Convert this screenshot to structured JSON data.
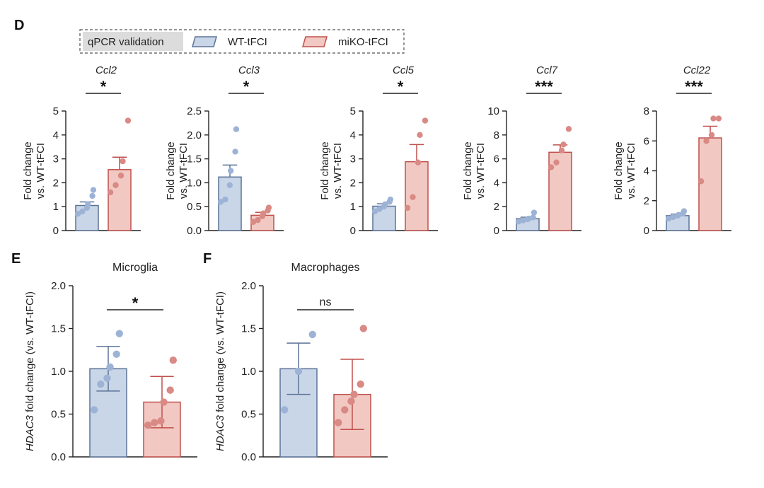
{
  "panels": {
    "D": "D",
    "E": "E",
    "F": "F"
  },
  "legend": {
    "title": "qPCR validation",
    "wt_label": "WT-tFCI",
    "ko_label": "miKO-tFCI"
  },
  "colors": {
    "wt_fill": "#c9d6e8",
    "wt_edge": "#5c7397",
    "wt_dot": "#9db3d6",
    "ko_fill": "#f2c8c3",
    "ko_edge": "#c0504d",
    "ko_dot": "#d98a84"
  },
  "chart_data": [
    {
      "type": "bar",
      "panel": "D",
      "title": "Ccl2",
      "ylabel_line1": "Fold change",
      "ylabel_line2": "vs. WT-tFCI",
      "ylim": [
        0,
        5
      ],
      "yticks": [
        "0",
        "1",
        "2",
        "3",
        "4",
        "5"
      ],
      "significance": "*",
      "categories": [
        "WT-tFCI",
        "miKO-tFCI"
      ],
      "values": [
        1.05,
        2.55
      ],
      "errors": [
        0.15,
        0.52
      ],
      "points": [
        [
          0.7,
          0.8,
          0.95,
          1.1,
          1.45,
          1.7
        ],
        [
          1.6,
          1.9,
          2.3,
          2.9,
          4.6
        ]
      ]
    },
    {
      "type": "bar",
      "panel": "D",
      "title": "Ccl3",
      "ylabel_line1": "Fold change",
      "ylabel_line2": "vs. WT-tFCI",
      "ylim": [
        0,
        2.5
      ],
      "yticks": [
        "0.0",
        "0.5",
        "1.0",
        "1.5",
        "2.0",
        "2.5"
      ],
      "significance": "*",
      "categories": [
        "WT-tFCI",
        "miKO-tFCI"
      ],
      "values": [
        1.12,
        0.32
      ],
      "errors": [
        0.25,
        0.06
      ],
      "points": [
        [
          0.6,
          0.65,
          0.95,
          1.25,
          1.65,
          2.12
        ],
        [
          0.18,
          0.22,
          0.3,
          0.36,
          0.42,
          0.48
        ]
      ]
    },
    {
      "type": "bar",
      "panel": "D",
      "title": "Ccl5",
      "ylabel_line1": "Fold change",
      "ylabel_line2": "vs. WT-tFCI",
      "ylim": [
        0,
        5
      ],
      "yticks": [
        "0",
        "1",
        "2",
        "3",
        "4",
        "5"
      ],
      "significance": "*",
      "categories": [
        "WT-tFCI",
        "miKO-tFCI"
      ],
      "values": [
        1.02,
        2.88
      ],
      "errors": [
        0.1,
        0.72
      ],
      "points": [
        [
          0.8,
          0.9,
          1.0,
          1.1,
          1.2,
          1.3
        ],
        [
          0.95,
          1.4,
          2.85,
          4.0,
          4.6
        ]
      ]
    },
    {
      "type": "bar",
      "panel": "D",
      "title": "Ccl7",
      "ylabel_line1": "Fold change",
      "ylabel_line2": "vs. WT-tFCI",
      "ylim": [
        0,
        10
      ],
      "yticks": [
        "0",
        "2",
        "4",
        "6",
        "8",
        "10"
      ],
      "significance": "***",
      "categories": [
        "WT-tFCI",
        "miKO-tFCI"
      ],
      "values": [
        1.0,
        6.55
      ],
      "errors": [
        0.12,
        0.62
      ],
      "points": [
        [
          0.75,
          0.85,
          0.95,
          1.0,
          1.1,
          1.5
        ],
        [
          5.3,
          5.7,
          6.7,
          7.2,
          8.5
        ]
      ]
    },
    {
      "type": "bar",
      "panel": "D",
      "title": "Ccl22",
      "ylabel_line1": "Fold change",
      "ylabel_line2": "vs. WT-tFCI",
      "ylim": [
        0,
        8
      ],
      "yticks": [
        "0",
        "2",
        "4",
        "6",
        "8"
      ],
      "significance": "***",
      "categories": [
        "WT-tFCI",
        "miKO-tFCI"
      ],
      "values": [
        1.0,
        6.2
      ],
      "errors": [
        0.1,
        0.78
      ],
      "points": [
        [
          0.8,
          0.9,
          1.0,
          1.05,
          1.15,
          1.3
        ],
        [
          3.3,
          6.0,
          6.4,
          7.5,
          7.5
        ]
      ]
    },
    {
      "type": "bar",
      "panel": "E",
      "title": "Microglia",
      "ylabel_prefix": "HDAC3",
      "ylabel_suffix": " fold change (vs. WT-tFCI)",
      "ylim": [
        0,
        2.0
      ],
      "yticks": [
        "0.0",
        "0.5",
        "1.0",
        "1.5",
        "2.0"
      ],
      "significance": "*",
      "categories": [
        "WT-tFCI",
        "miKO-tFCI"
      ],
      "values": [
        1.03,
        0.64
      ],
      "errors": [
        0.26,
        0.3
      ],
      "points": [
        [
          0.55,
          0.85,
          0.92,
          1.05,
          1.2,
          1.44
        ],
        [
          0.37,
          0.4,
          0.42,
          0.64,
          0.78,
          1.13
        ]
      ]
    },
    {
      "type": "bar",
      "panel": "F",
      "title": "Macrophages",
      "ylabel_prefix": "HDAC3",
      "ylabel_suffix": " fold change (vs. WT-tFCI)",
      "ylim": [
        0,
        2.0
      ],
      "yticks": [
        "0.0",
        "0.5",
        "1.0",
        "1.5",
        "2.0"
      ],
      "significance": "ns",
      "categories": [
        "WT-tFCI",
        "miKO-tFCI"
      ],
      "values": [
        1.03,
        0.73
      ],
      "errors": [
        0.3,
        0.41
      ],
      "points": [
        [
          0.55,
          1.0,
          1.43
        ],
        [
          0.4,
          0.55,
          0.65,
          0.73,
          0.85,
          1.5
        ]
      ]
    }
  ]
}
